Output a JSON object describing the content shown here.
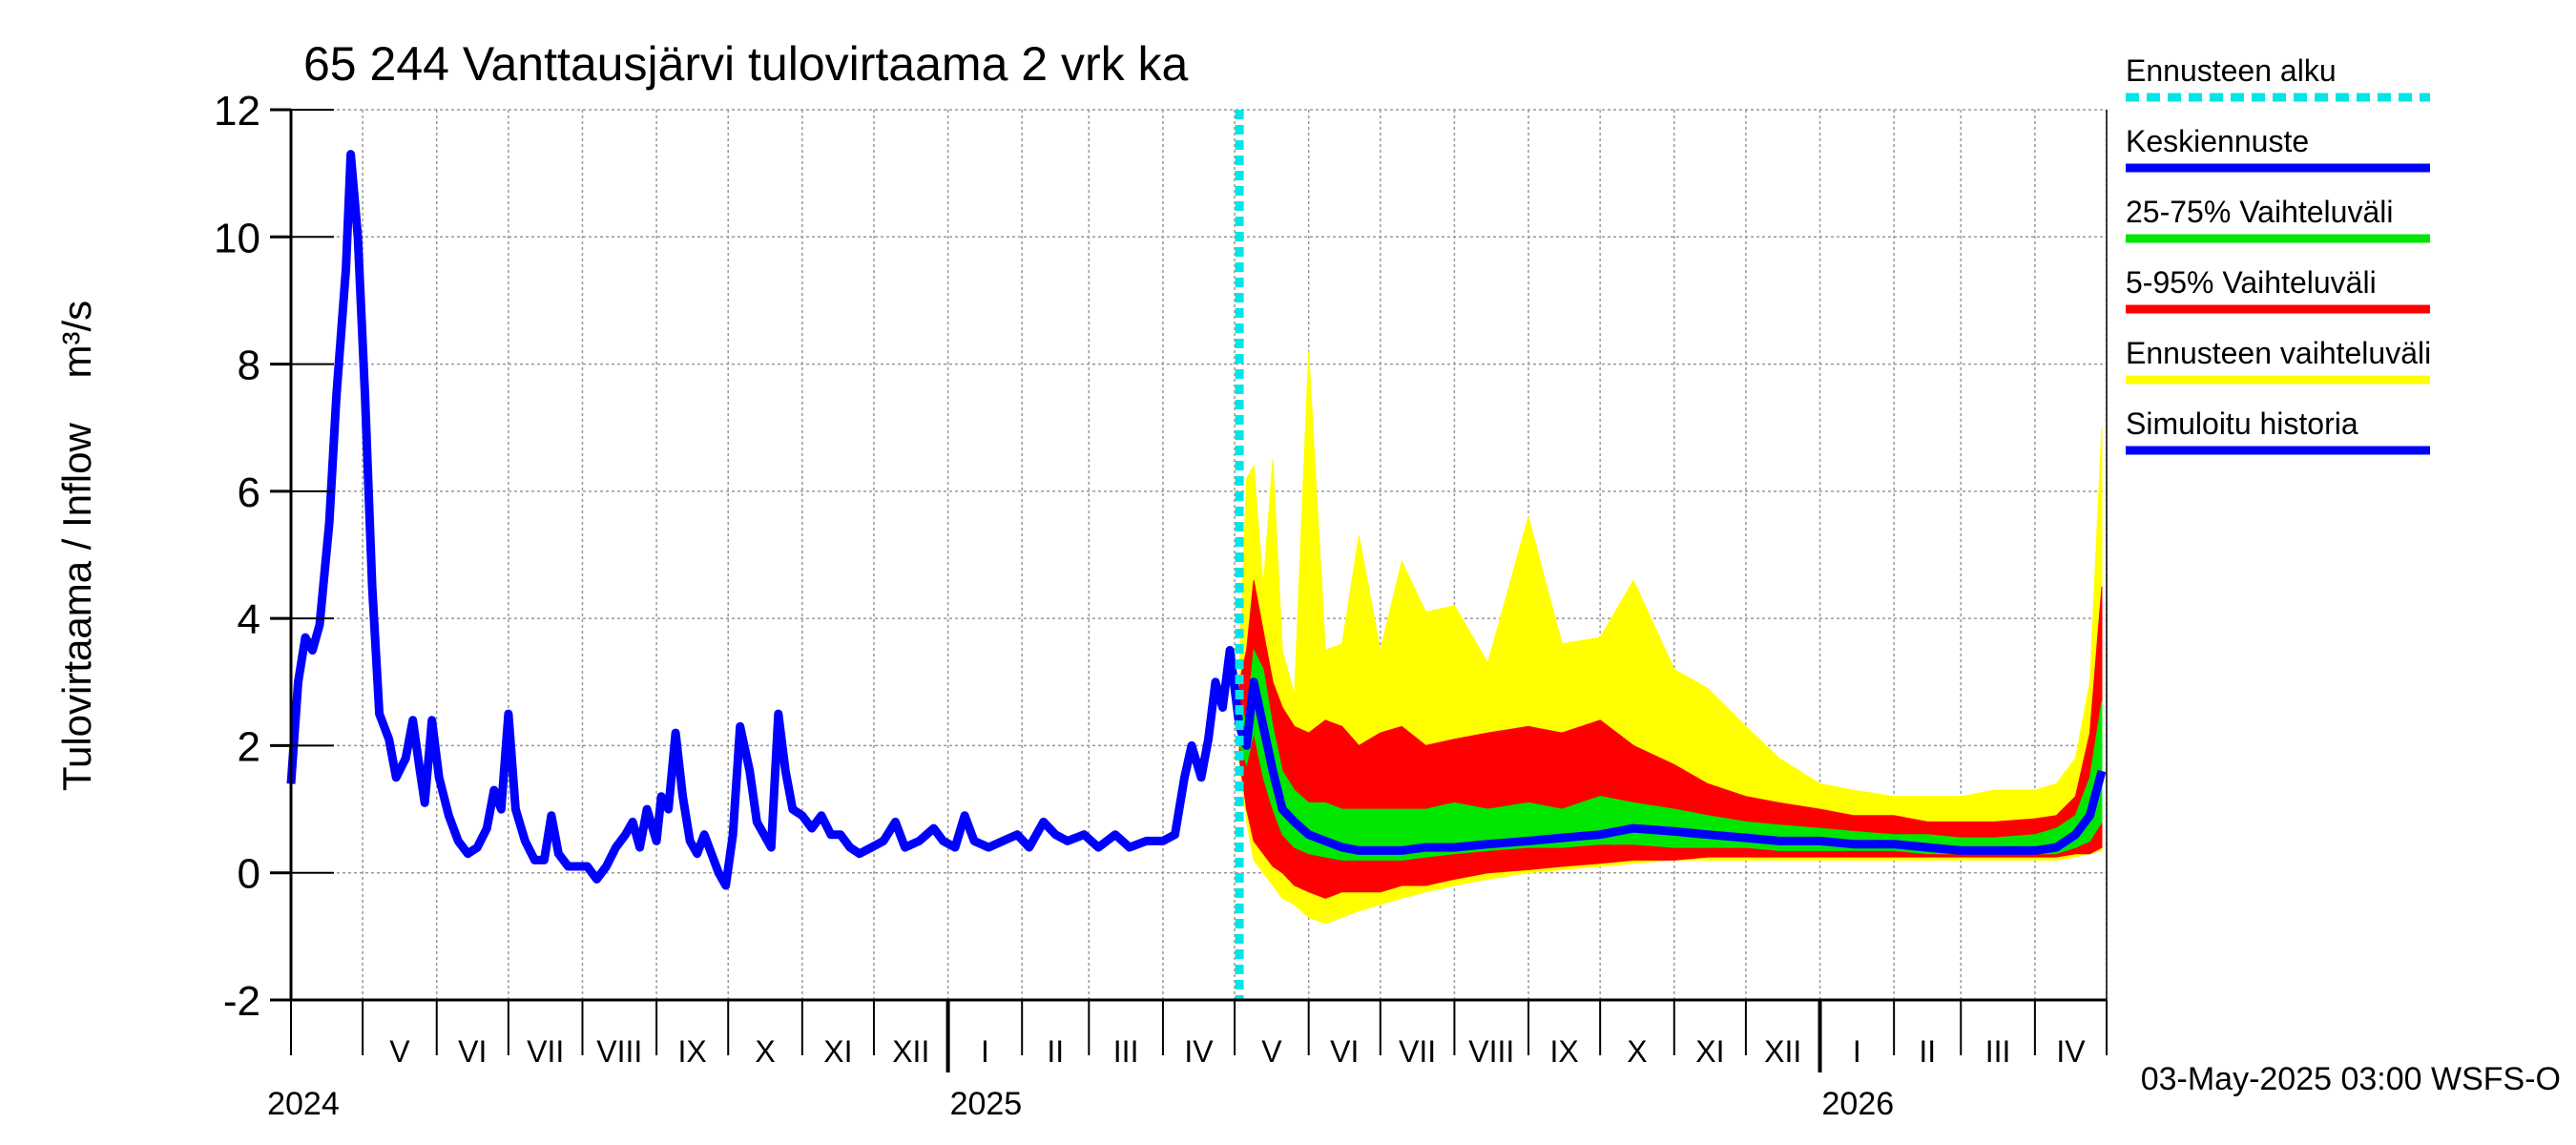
{
  "chart_data": {
    "type": "line",
    "title": "65 244 Vanttausjärvi tulovirtaama 2 vrk ka",
    "ylabel": "Tulovirtaama / Inflow    m³/s",
    "ylim": [
      -2,
      12
    ],
    "yticks": [
      -2,
      0,
      2,
      4,
      6,
      8,
      10,
      12
    ],
    "x_start": "2024-04-01",
    "x_end": "2026-05-01",
    "forecast_start": "2025-05-03",
    "month_labels": [
      "V",
      "VI",
      "VII",
      "VIII",
      "IX",
      "X",
      "XI",
      "XII",
      "I",
      "II",
      "III",
      "IV",
      "V",
      "VI",
      "VII",
      "VIII",
      "IX",
      "X",
      "XI",
      "XII",
      "I",
      "II",
      "III",
      "IV"
    ],
    "year_labels": [
      {
        "label": "2024",
        "date": "2024-05-01"
      },
      {
        "label": "2025",
        "date": "2025-01-01"
      },
      {
        "label": "2026",
        "date": "2026-01-01"
      }
    ],
    "timestamp": "03-May-2025 03:00 WSFS-O",
    "legend": [
      {
        "label": "Ennusteen alku",
        "color": "#00e5e5",
        "style": "dashed"
      },
      {
        "label": "Keskiennuste",
        "color": "#0000ff",
        "style": "solid"
      },
      {
        "label": "25-75% Vaihteluväli",
        "color": "#00e600",
        "style": "solid"
      },
      {
        "label": "5-95% Vaihteluväli",
        "color": "#ff0000",
        "style": "solid"
      },
      {
        "label": "Ennusteen vaihteluväli",
        "color": "#ffff00",
        "style": "solid"
      },
      {
        "label": "Simuloitu historia",
        "color": "#0000ff",
        "style": "solid"
      }
    ],
    "history": {
      "name": "Simuloitu historia",
      "color": "#0000ff",
      "points": [
        [
          "2024-04-01",
          1.4
        ],
        [
          "2024-04-04",
          3.0
        ],
        [
          "2024-04-07",
          3.7
        ],
        [
          "2024-04-10",
          3.5
        ],
        [
          "2024-04-13",
          3.9
        ],
        [
          "2024-04-17",
          5.5
        ],
        [
          "2024-04-20",
          7.5
        ],
        [
          "2024-04-24",
          9.5
        ],
        [
          "2024-04-26",
          11.3
        ],
        [
          "2024-04-29",
          10.0
        ],
        [
          "2024-05-02",
          7.5
        ],
        [
          "2024-05-05",
          4.5
        ],
        [
          "2024-05-08",
          2.5
        ],
        [
          "2024-05-12",
          2.1
        ],
        [
          "2024-05-15",
          1.5
        ],
        [
          "2024-05-19",
          1.8
        ],
        [
          "2024-05-22",
          2.4
        ],
        [
          "2024-05-25",
          1.6
        ],
        [
          "2024-05-27",
          1.1
        ],
        [
          "2024-05-30",
          2.4
        ],
        [
          "2024-06-02",
          1.5
        ],
        [
          "2024-06-06",
          0.9
        ],
        [
          "2024-06-10",
          0.5
        ],
        [
          "2024-06-14",
          0.3
        ],
        [
          "2024-06-18",
          0.4
        ],
        [
          "2024-06-22",
          0.7
        ],
        [
          "2024-06-25",
          1.3
        ],
        [
          "2024-06-28",
          1.0
        ],
        [
          "2024-07-01",
          2.5
        ],
        [
          "2024-07-04",
          1.0
        ],
        [
          "2024-07-08",
          0.5
        ],
        [
          "2024-07-12",
          0.2
        ],
        [
          "2024-07-16",
          0.2
        ],
        [
          "2024-07-19",
          0.9
        ],
        [
          "2024-07-22",
          0.3
        ],
        [
          "2024-07-26",
          0.1
        ],
        [
          "2024-07-30",
          0.1
        ],
        [
          "2024-08-03",
          0.1
        ],
        [
          "2024-08-07",
          -0.1
        ],
        [
          "2024-08-11",
          0.1
        ],
        [
          "2024-08-15",
          0.4
        ],
        [
          "2024-08-19",
          0.6
        ],
        [
          "2024-08-22",
          0.8
        ],
        [
          "2024-08-25",
          0.4
        ],
        [
          "2024-08-28",
          1.0
        ],
        [
          "2024-09-01",
          0.5
        ],
        [
          "2024-09-03",
          1.2
        ],
        [
          "2024-09-06",
          1.0
        ],
        [
          "2024-09-09",
          2.2
        ],
        [
          "2024-09-12",
          1.2
        ],
        [
          "2024-09-15",
          0.5
        ],
        [
          "2024-09-18",
          0.3
        ],
        [
          "2024-09-21",
          0.6
        ],
        [
          "2024-09-24",
          0.3
        ],
        [
          "2024-09-27",
          0.0
        ],
        [
          "2024-09-30",
          -0.2
        ],
        [
          "2024-10-03",
          0.6
        ],
        [
          "2024-10-06",
          2.3
        ],
        [
          "2024-10-10",
          1.6
        ],
        [
          "2024-10-13",
          0.8
        ],
        [
          "2024-10-16",
          0.6
        ],
        [
          "2024-10-19",
          0.4
        ],
        [
          "2024-10-22",
          2.5
        ],
        [
          "2024-10-25",
          1.6
        ],
        [
          "2024-10-28",
          1.0
        ],
        [
          "2024-11-01",
          0.9
        ],
        [
          "2024-11-05",
          0.7
        ],
        [
          "2024-11-09",
          0.9
        ],
        [
          "2024-11-13",
          0.6
        ],
        [
          "2024-11-17",
          0.6
        ],
        [
          "2024-11-21",
          0.4
        ],
        [
          "2024-11-25",
          0.3
        ],
        [
          "2024-11-30",
          0.4
        ],
        [
          "2024-12-05",
          0.5
        ],
        [
          "2024-12-10",
          0.8
        ],
        [
          "2024-12-14",
          0.4
        ],
        [
          "2024-12-20",
          0.5
        ],
        [
          "2024-12-26",
          0.7
        ],
        [
          "2024-12-30",
          0.5
        ],
        [
          "2025-01-04",
          0.4
        ],
        [
          "2025-01-08",
          0.9
        ],
        [
          "2025-01-12",
          0.5
        ],
        [
          "2025-01-18",
          0.4
        ],
        [
          "2025-01-24",
          0.5
        ],
        [
          "2025-01-30",
          0.6
        ],
        [
          "2025-02-04",
          0.4
        ],
        [
          "2025-02-10",
          0.8
        ],
        [
          "2025-02-15",
          0.6
        ],
        [
          "2025-02-20",
          0.5
        ],
        [
          "2025-02-27",
          0.6
        ],
        [
          "2025-03-05",
          0.4
        ],
        [
          "2025-03-12",
          0.6
        ],
        [
          "2025-03-18",
          0.4
        ],
        [
          "2025-03-25",
          0.5
        ],
        [
          "2025-04-01",
          0.5
        ],
        [
          "2025-04-06",
          0.6
        ],
        [
          "2025-04-10",
          1.5
        ],
        [
          "2025-04-13",
          2.0
        ],
        [
          "2025-04-17",
          1.5
        ],
        [
          "2025-04-20",
          2.1
        ],
        [
          "2025-04-23",
          3.0
        ],
        [
          "2025-04-26",
          2.6
        ],
        [
          "2025-04-29",
          3.5
        ],
        [
          "2025-05-03",
          2.3
        ]
      ]
    },
    "forecast": {
      "dates": [
        "2025-05-03",
        "2025-05-06",
        "2025-05-09",
        "2025-05-13",
        "2025-05-17",
        "2025-05-21",
        "2025-05-26",
        "2025-06-01",
        "2025-06-08",
        "2025-06-15",
        "2025-06-22",
        "2025-07-01",
        "2025-07-10",
        "2025-07-20",
        "2025-08-01",
        "2025-08-15",
        "2025-09-01",
        "2025-09-15",
        "2025-10-01",
        "2025-10-15",
        "2025-11-01",
        "2025-11-15",
        "2025-12-01",
        "2025-12-15",
        "2026-01-01",
        "2026-01-15",
        "2026-02-01",
        "2026-02-15",
        "2026-03-01",
        "2026-03-15",
        "2026-04-01",
        "2026-04-10",
        "2026-04-18",
        "2026-04-24",
        "2026-04-29"
      ],
      "median": [
        2.3,
        2.0,
        3.0,
        2.3,
        1.6,
        1.0,
        0.8,
        0.6,
        0.5,
        0.4,
        0.35,
        0.35,
        0.35,
        0.4,
        0.4,
        0.45,
        0.5,
        0.55,
        0.6,
        0.7,
        0.65,
        0.6,
        0.55,
        0.5,
        0.5,
        0.45,
        0.45,
        0.4,
        0.35,
        0.35,
        0.35,
        0.4,
        0.6,
        0.9,
        1.6
      ],
      "p25": [
        2.0,
        1.7,
        2.2,
        1.5,
        1.0,
        0.6,
        0.4,
        0.3,
        0.25,
        0.2,
        0.2,
        0.2,
        0.2,
        0.25,
        0.3,
        0.35,
        0.4,
        0.4,
        0.45,
        0.45,
        0.4,
        0.4,
        0.4,
        0.35,
        0.35,
        0.35,
        0.35,
        0.3,
        0.3,
        0.3,
        0.3,
        0.3,
        0.4,
        0.5,
        0.8
      ],
      "p75": [
        2.6,
        2.4,
        3.5,
        3.2,
        2.3,
        1.6,
        1.3,
        1.1,
        1.1,
        1.0,
        1.0,
        1.0,
        1.0,
        1.0,
        1.1,
        1.0,
        1.1,
        1.0,
        1.2,
        1.1,
        1.0,
        0.9,
        0.8,
        0.75,
        0.7,
        0.65,
        0.6,
        0.6,
        0.55,
        0.55,
        0.6,
        0.7,
        0.9,
        1.5,
        2.7
      ],
      "p5": [
        1.8,
        1.0,
        0.5,
        0.3,
        0.1,
        0.0,
        -0.2,
        -0.3,
        -0.4,
        -0.3,
        -0.3,
        -0.3,
        -0.2,
        -0.2,
        -0.1,
        0.0,
        0.05,
        0.1,
        0.15,
        0.2,
        0.2,
        0.25,
        0.25,
        0.25,
        0.25,
        0.25,
        0.25,
        0.25,
        0.25,
        0.25,
        0.25,
        0.25,
        0.3,
        0.3,
        0.4
      ],
      "p95": [
        3.0,
        3.5,
        4.6,
        3.8,
        3.0,
        2.6,
        2.3,
        2.2,
        2.4,
        2.3,
        2.0,
        2.2,
        2.3,
        2.0,
        2.1,
        2.2,
        2.3,
        2.2,
        2.4,
        2.0,
        1.7,
        1.4,
        1.2,
        1.1,
        1.0,
        0.9,
        0.9,
        0.8,
        0.8,
        0.8,
        0.85,
        0.9,
        1.2,
        2.2,
        4.5
      ],
      "min": [
        1.7,
        0.8,
        0.2,
        0.0,
        -0.2,
        -0.4,
        -0.5,
        -0.7,
        -0.8,
        -0.7,
        -0.6,
        -0.5,
        -0.4,
        -0.3,
        -0.2,
        -0.1,
        0.0,
        0.05,
        0.1,
        0.15,
        0.2,
        0.2,
        0.2,
        0.2,
        0.2,
        0.2,
        0.2,
        0.2,
        0.2,
        0.2,
        0.2,
        0.2,
        0.25,
        0.3,
        0.35
      ],
      "max": [
        3.3,
        6.2,
        6.4,
        4.5,
        6.5,
        3.5,
        2.8,
        8.2,
        3.5,
        3.6,
        5.3,
        3.5,
        4.9,
        4.1,
        4.2,
        3.3,
        5.6,
        3.6,
        3.7,
        4.6,
        3.2,
        2.9,
        2.3,
        1.8,
        1.4,
        1.3,
        1.2,
        1.2,
        1.2,
        1.3,
        1.3,
        1.4,
        1.8,
        3.0,
        7.0
      ]
    }
  }
}
